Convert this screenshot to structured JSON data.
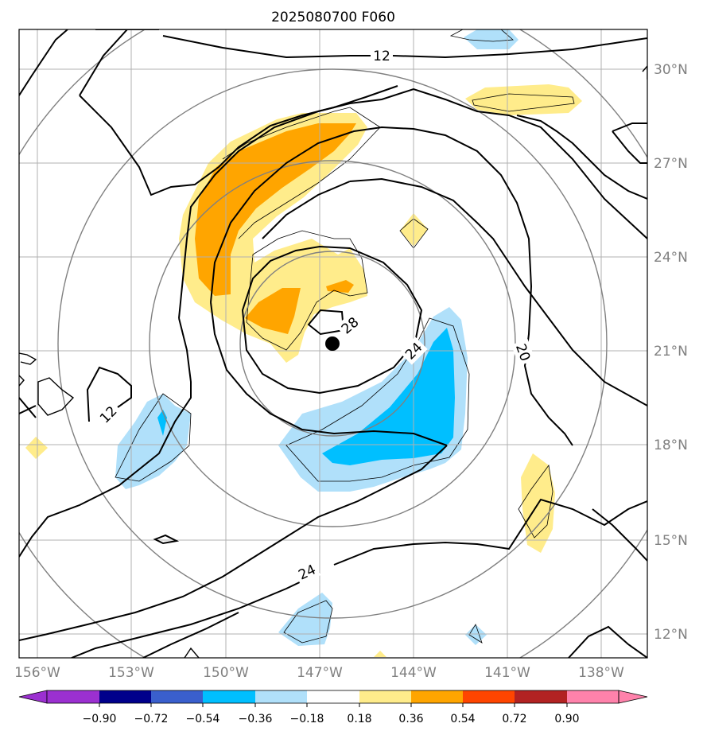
{
  "title": "2025080700 F060",
  "map": {
    "lon_labels": [
      "156°W",
      "153°W",
      "150°W",
      "147°W",
      "144°W",
      "141°W",
      "138°W"
    ],
    "lat_labels": [
      "30°N",
      "27°N",
      "24°N",
      "21°N",
      "18°N",
      "15°N",
      "12°N"
    ],
    "contour_labels": [
      "12",
      "12",
      "24",
      "28",
      "24",
      "20"
    ],
    "storm_center": {
      "lon": -146.6,
      "lat": 21.3
    }
  },
  "colorbar": {
    "levels": [
      "−0.90",
      "−0.72",
      "−0.54",
      "−0.36",
      "−0.18",
      "0.18",
      "0.36",
      "0.54",
      "0.72",
      "0.90"
    ],
    "colors": [
      "#9b30d0",
      "#00008b",
      "#3a5fcd",
      "#00bfff",
      "#b0e0fa",
      "#ffffff",
      "#ffec8b",
      "#ffa500",
      "#ff4500",
      "#b22222",
      "#ff82ab"
    ]
  },
  "colors": {
    "light_blue": "#b0e0fa",
    "blue": "#00bfff",
    "light_yellow": "#ffec8b",
    "orange": "#ffa500",
    "grid": "#b0b0b0",
    "range_rings": "#808080"
  }
}
